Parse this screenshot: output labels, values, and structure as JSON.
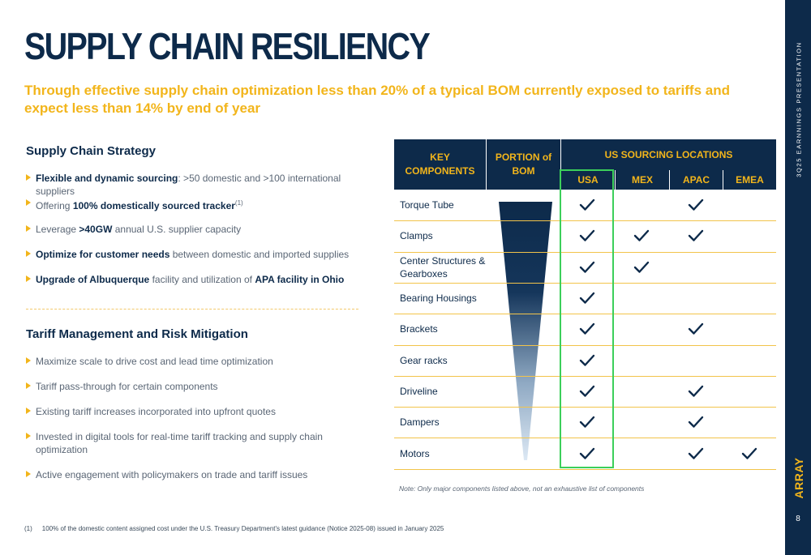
{
  "title": "SUPPLY CHAIN RESILIENCY",
  "subtitle": "Through effective supply chain optimization less than 20% of a typical BOM currently exposed to tariffs and expect less than 14% by end of year",
  "strategy": {
    "heading": "Supply Chain Strategy",
    "bullets": [
      {
        "bold": "Flexible and dynamic sourcing",
        "rest": ": >50 domestic and >100 international suppliers"
      },
      {
        "pre": "Offering ",
        "bold": "100% domestically sourced tracker",
        "sup": "(1)"
      },
      {
        "pre": "Leverage ",
        "bold": ">40GW",
        "rest": " annual U.S. supplier capacity"
      },
      {
        "bold": "Optimize for customer needs",
        "rest": " between domestic and imported supplies"
      },
      {
        "bold": "Upgrade of Albuquerque",
        "rest": " facility and utilization of ",
        "bold2": "APA facility in Ohio"
      }
    ]
  },
  "tariff": {
    "heading": "Tariff Management and Risk Mitigation",
    "bullets": [
      "Maximize scale to drive cost and lead time optimization",
      "Tariff pass-through for certain components",
      "Existing tariff increases incorporated into upfront quotes",
      "Invested in digital tools for real-time tariff tracking and supply chain optimization",
      "Active engagement with policymakers on trade and tariff issues"
    ]
  },
  "table": {
    "col_components": "KEY COMPONENTS",
    "col_portion": "PORTION of BOM",
    "col_locations": "US SOURCING LOCATIONS",
    "countries": [
      "USA",
      "MEX",
      "APAC",
      "EMEA"
    ],
    "rows": [
      {
        "name": "Torque Tube",
        "checks": [
          true,
          false,
          true,
          false
        ]
      },
      {
        "name": "Clamps",
        "checks": [
          true,
          true,
          true,
          false
        ]
      },
      {
        "name": "Center Structures & Gearboxes",
        "checks": [
          true,
          true,
          false,
          false
        ]
      },
      {
        "name": "Bearing Housings",
        "checks": [
          true,
          false,
          false,
          false
        ]
      },
      {
        "name": "Brackets",
        "checks": [
          true,
          false,
          true,
          false
        ]
      },
      {
        "name": "Gear racks",
        "checks": [
          true,
          false,
          false,
          false
        ]
      },
      {
        "name": "Driveline",
        "checks": [
          true,
          false,
          true,
          false
        ]
      },
      {
        "name": "Dampers",
        "checks": [
          true,
          false,
          true,
          false
        ]
      },
      {
        "name": "Motors",
        "checks": [
          true,
          false,
          true,
          true
        ]
      }
    ],
    "note": "Note: Only major components listed above, not an exhaustive list of components"
  },
  "footnote": {
    "num": "(1)",
    "text": "100% of the domestic content assigned cost under the U.S. Treasury Department's latest guidance (Notice 2025-08) issued in January 2025"
  },
  "sidebar": {
    "label": "3Q25 EARNNINGS PRESENTATION",
    "logo": "ARRAY",
    "page": "8"
  },
  "colors": {
    "navy": "#0d2a4a",
    "gold": "#f2b51b",
    "green": "#3ccf5a"
  }
}
